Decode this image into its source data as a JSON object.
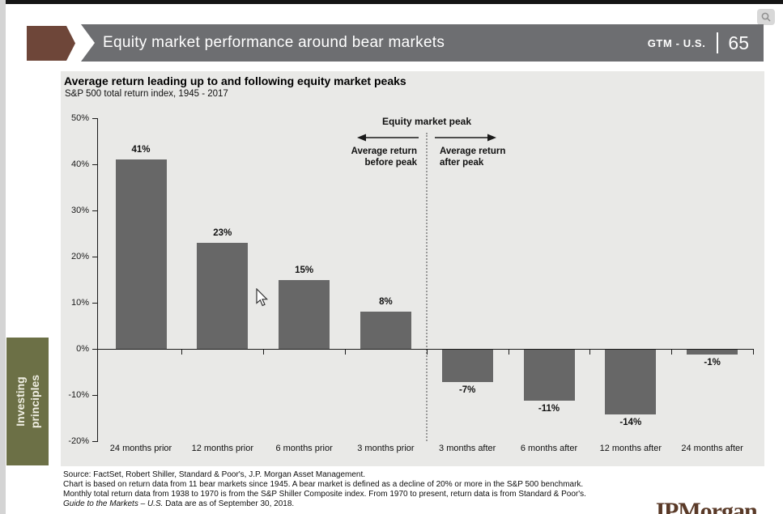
{
  "header": {
    "title": "Equity market performance around bear markets",
    "gtm_label": "GTM - U.S.",
    "page_number": "65"
  },
  "sidebar_tab": {
    "line1": "Investing",
    "line2": "principles"
  },
  "chart_header": {
    "title": "Average return leading up to and following equity market peaks",
    "subtitle": "S&P 500 total return index, 1945 - 2017"
  },
  "annotations": {
    "peak_label": "Equity market peak",
    "before_line1": "Average return",
    "before_line2": "before peak",
    "after_line1": "Average return",
    "after_line2": "after peak"
  },
  "chart_data": {
    "type": "bar",
    "title": "Average return leading up to and following equity market peaks",
    "subtitle": "S&P 500 total return index, 1945 - 2017",
    "categories": [
      "24 months prior",
      "12 months prior",
      "6 months prior",
      "3 months prior",
      "3 months after",
      "6 months after",
      "12 months after",
      "24 months after"
    ],
    "values": [
      41,
      23,
      15,
      8,
      -7,
      -11,
      -14,
      -1
    ],
    "labels": [
      "41%",
      "23%",
      "15%",
      "8%",
      "-7%",
      "-11%",
      "-14%",
      "-1%"
    ],
    "ylim": [
      -20,
      50
    ],
    "yticks": [
      "50%",
      "40%",
      "30%",
      "20%",
      "10%",
      "0%",
      "-10%",
      "-20%"
    ],
    "grid": false,
    "legend": "none",
    "bar_color": "#676767"
  },
  "footer": {
    "line1": "Source: FactSet, Robert Shiller, Standard & Poor's, J.P. Morgan Asset Management.",
    "line2": "Chart is based on return data from 11 bear markets since 1945. A bear market is defined as a decline of 20% or more in the S&P 500 benchmark.",
    "line3": "Monthly total return data from 1938 to 1970 is from the S&P Shiller Composite index. From 1970 to present, return data is from Standard & Poor's.",
    "line4_italic": "Guide to the Markets – U.S.",
    "line4_rest": " Data are as of September 30, 2018."
  },
  "logo": {
    "text": "JPMorgan"
  },
  "colors": {
    "header_gray": "#6d6e71",
    "arrow_brown": "#6e4639",
    "tab_olive": "#6c7046",
    "panel_bg": "#e9e9e7",
    "bar_gray": "#676767",
    "logo_brown": "#5a3a28"
  }
}
